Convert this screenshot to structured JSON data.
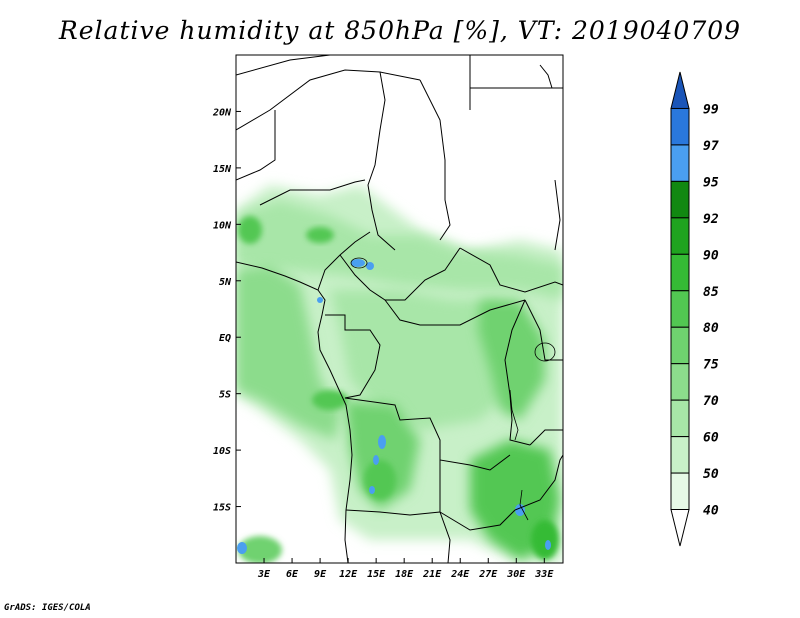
{
  "title": "Relative humidity at 850hPa [%], VT: 2019040709",
  "credit": "GrADS: IGES/COLA",
  "map": {
    "projection": "lat-lon",
    "lon_range": [
      0,
      35
    ],
    "lat_range": [
      -20,
      25
    ],
    "lon_ticks": [
      {
        "value": 3,
        "label": "3E"
      },
      {
        "value": 6,
        "label": "6E"
      },
      {
        "value": 9,
        "label": "9E"
      },
      {
        "value": 12,
        "label": "12E"
      },
      {
        "value": 15,
        "label": "15E"
      },
      {
        "value": 18,
        "label": "18E"
      },
      {
        "value": 21,
        "label": "21E"
      },
      {
        "value": 24,
        "label": "24E"
      },
      {
        "value": 27,
        "label": "27E"
      },
      {
        "value": 30,
        "label": "30E"
      },
      {
        "value": 33,
        "label": "33E"
      }
    ],
    "lat_ticks": [
      {
        "value": 20,
        "label": "20N"
      },
      {
        "value": 15,
        "label": "15N"
      },
      {
        "value": 10,
        "label": "10N"
      },
      {
        "value": 5,
        "label": "5N"
      },
      {
        "value": 0,
        "label": "EQ"
      },
      {
        "value": -5,
        "label": "5S"
      },
      {
        "value": -10,
        "label": "10S"
      },
      {
        "value": -15,
        "label": "15S"
      }
    ]
  },
  "colorbar": {
    "levels": [
      "40",
      "50",
      "60",
      "70",
      "75",
      "80",
      "85",
      "90",
      "92",
      "95",
      "97",
      "99"
    ],
    "colors": [
      "#ffffff",
      "#e6f9e6",
      "#c8f0c8",
      "#a8e6a8",
      "#8cdc8c",
      "#6fd26f",
      "#52c752",
      "#35bb35",
      "#1fa31f",
      "#118811",
      "#4a9ff0",
      "#2a78dc",
      "#1a55b8"
    ]
  },
  "fields": {
    "humid_regions": [
      {
        "name": "west-coast-band",
        "level": 4
      },
      {
        "name": "central-basin",
        "level": 3
      },
      {
        "name": "sahel-band",
        "level": 3
      },
      {
        "name": "great-lakes",
        "level": 5
      },
      {
        "name": "angola-plateau",
        "level": 5
      },
      {
        "name": "zambia-malawi",
        "level": 6
      }
    ],
    "saturated_patches": [
      "lake-chad",
      "lake-chad-east",
      "angola-lakes",
      "lake-malawi",
      "gabon-coast",
      "namib-coast",
      "mozambique"
    ]
  }
}
